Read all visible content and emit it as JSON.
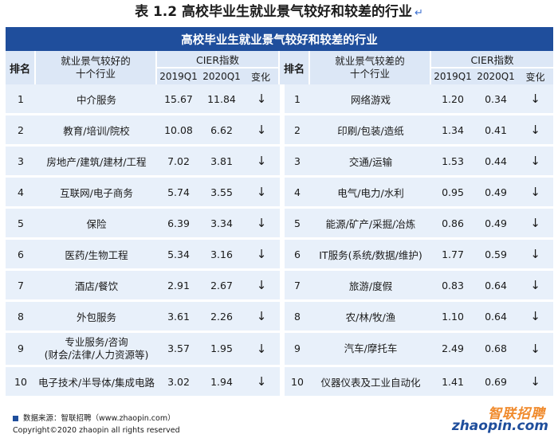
{
  "title": "表 1.2  高校毕业生就业景气较好和较差的行业",
  "title_mark": "↵",
  "table": {
    "banner": "高校毕业生就业景气较好和较差的行业",
    "headers": {
      "rank": "排名",
      "good_industry_line1": "就业景气较好的",
      "good_industry_line2": "十个行业",
      "bad_industry_line1": "就业景气较差的",
      "bad_industry_line2": "十个行业",
      "cier": "CIER指数",
      "q1_2019": "2019Q1",
      "q1_2020": "2020Q1",
      "change": "变化"
    },
    "rows": [
      {
        "rank": "1",
        "good": "中介服务",
        "g19": "15.67",
        "g20": "11.84",
        "gchg": "↓",
        "rank2": "1",
        "bad": "网络游戏",
        "b19": "1.20",
        "b20": "0.34",
        "bchg": "↓"
      },
      {
        "rank": "2",
        "good": "教育/培训/院校",
        "g19": "10.08",
        "g20": "6.62",
        "gchg": "↓",
        "rank2": "2",
        "bad": "印刷/包装/造纸",
        "b19": "1.34",
        "b20": "0.41",
        "bchg": "↓"
      },
      {
        "rank": "3",
        "good": "房地产/建筑/建材/工程",
        "g19": "7.02",
        "g20": "3.81",
        "gchg": "↓",
        "rank2": "3",
        "bad": "交通/运输",
        "b19": "1.53",
        "b20": "0.44",
        "bchg": "↓"
      },
      {
        "rank": "4",
        "good": "互联网/电子商务",
        "g19": "5.74",
        "g20": "3.55",
        "gchg": "↓",
        "rank2": "4",
        "bad": "电气/电力/水利",
        "b19": "0.95",
        "b20": "0.49",
        "bchg": "↓"
      },
      {
        "rank": "5",
        "good": "保险",
        "g19": "6.39",
        "g20": "3.34",
        "gchg": "↓",
        "rank2": "5",
        "bad": "能源/矿产/采掘/冶炼",
        "b19": "0.86",
        "b20": "0.49",
        "bchg": "↓"
      },
      {
        "rank": "6",
        "good": "医药/生物工程",
        "g19": "5.34",
        "g20": "3.16",
        "gchg": "↓",
        "rank2": "6",
        "bad": "IT服务(系统/数据/维护)",
        "b19": "1.77",
        "b20": "0.59",
        "bchg": "↓"
      },
      {
        "rank": "7",
        "good": "酒店/餐饮",
        "g19": "2.91",
        "g20": "2.67",
        "gchg": "↓",
        "rank2": "7",
        "bad": "旅游/度假",
        "b19": "0.83",
        "b20": "0.64",
        "bchg": "↓"
      },
      {
        "rank": "8",
        "good": "外包服务",
        "g19": "3.61",
        "g20": "2.26",
        "gchg": "↓",
        "rank2": "8",
        "bad": "农/林/牧/渔",
        "b19": "1.10",
        "b20": "0.64",
        "bchg": "↓"
      },
      {
        "rank": "9",
        "good": "专业服务/咨询",
        "good_line2": "(财会/法律/人力资源等)",
        "g19": "3.57",
        "g20": "1.95",
        "gchg": "↓",
        "rank2": "9",
        "bad": "汽车/摩托车",
        "b19": "2.49",
        "b20": "0.68",
        "bchg": "↓"
      },
      {
        "rank": "10",
        "good": "电子技术/半导体/集成电路",
        "g19": "3.02",
        "g20": "1.94",
        "gchg": "↓",
        "rank2": "10",
        "bad": "仪器仪表及工业自动化",
        "b19": "1.41",
        "b20": "0.69",
        "bchg": "↓"
      }
    ]
  },
  "footer": {
    "source": "数据来源：智联招聘（www.zhaopin.com）",
    "copyright": "Copyright©2020 zhaopin all rights reserved"
  },
  "logo": {
    "cn": "智联招聘",
    "en": "zhaopin.com"
  },
  "colors": {
    "banner": "#1f4e9c",
    "header_bg": "#dce7f6",
    "row_bg": "#e8f0fa",
    "logo_orange": "#f08a2c"
  }
}
